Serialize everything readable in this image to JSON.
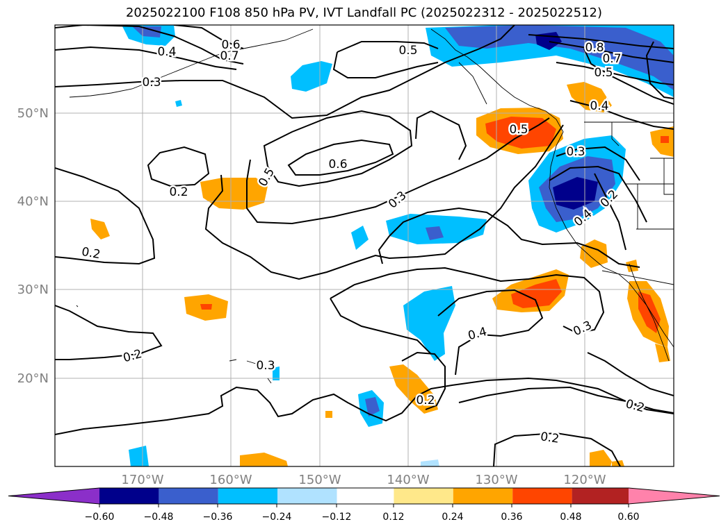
{
  "title": "2025022100 F108 850 hPa PV, IVT Landfall PC (2025022312 - 2025022512)",
  "lon_ticks": [
    "170°W",
    "160°W",
    "150°W",
    "140°W",
    "130°W",
    "120°W"
  ],
  "lat_ticks": [
    "50°N",
    "40°N",
    "30°N",
    "20°N"
  ],
  "contour_labels": [
    "0.4",
    "0.6",
    "0.7",
    "0.3",
    "0.5",
    "0.8",
    "0.7",
    "0.5",
    "0.4",
    "0.5",
    "0.3",
    "0.6",
    "0.5",
    "0.2",
    "0.3",
    "0.2",
    "0.4",
    "0.2",
    "0.2",
    "0.3",
    "0.4",
    "0.3",
    "0.2",
    "0.2",
    "0.2"
  ],
  "colorbar": {
    "ticks": [
      "−0.60",
      "−0.48",
      "−0.36",
      "−0.24",
      "−0.12",
      "0.12",
      "0.24",
      "0.36",
      "0.48",
      "0.60"
    ],
    "colors": [
      "#8b2fc9",
      "#00008b",
      "#3a5fcd",
      "#00bfff",
      "#b0e2ff",
      "#ffffff",
      "#ffe88a",
      "#ffa500",
      "#ff4500",
      "#b22222",
      "#ff82ab"
    ]
  }
}
